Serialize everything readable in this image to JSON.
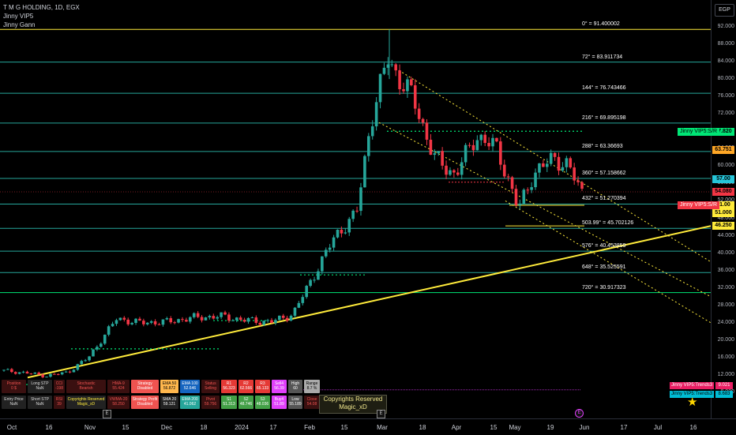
{
  "header": {
    "symbol_line": "T M G HOLDING, 1D, EGX",
    "indicator1": "Jinny VIP5",
    "indicator2": "Jinny Gann"
  },
  "currency_button": "EGP",
  "price_axis": {
    "min": 8,
    "max": 94,
    "ticks": [
      "92.000",
      "88.000",
      "84.000",
      "80.000",
      "76.000",
      "72.000",
      "68.000",
      "64.000",
      "60.000",
      "56.000",
      "52.000",
      "48.000",
      "44.000",
      "40.000",
      "36.000",
      "32.000",
      "28.000",
      "24.000",
      "20.000",
      "16.000",
      "12.000",
      "8.000"
    ]
  },
  "time_axis": {
    "labels": [
      "Oct",
      "16",
      "Nov",
      "15",
      "Dec",
      "18",
      "2024",
      "17",
      "Feb",
      "15",
      "Mar",
      "18",
      "Apr",
      "15",
      "May",
      "19",
      "Jun",
      "17",
      "Jul",
      "16"
    ]
  },
  "gann_levels": [
    {
      "label": "0° = 91.400002",
      "price": 91.4,
      "color": "#ffeb3b"
    },
    {
      "label": "72° = 83.911734",
      "price": 83.911734,
      "color": "#26a69a"
    },
    {
      "label": "144° = 76.743466",
      "price": 76.743466,
      "color": "#26a69a"
    },
    {
      "label": "216° = 69.895198",
      "price": 69.895198,
      "color": "#26a69a"
    },
    {
      "label": "288° = 63.36693",
      "price": 63.36693,
      "color": "#26a69a"
    },
    {
      "label": "360° = 57.158662",
      "price": 57.158662,
      "color": "#26a69a"
    },
    {
      "label": "432° = 51.270394",
      "price": 51.270394,
      "color": "#26a69a"
    },
    {
      "label": "503.99° = 45.702126",
      "price": 45.702126,
      "color": "#26a69a"
    },
    {
      "label": "576° = 40.453859",
      "price": 40.453859,
      "color": "#26a69a"
    },
    {
      "label": "648° = 35.525591",
      "price": 35.525591,
      "color": "#26a69a"
    },
    {
      "label": "720° = 30.917323",
      "price": 30.917323,
      "color": "#00e676"
    }
  ],
  "price_labels": [
    {
      "text": "67.820",
      "price": 67.82,
      "color": "#00e676"
    },
    {
      "text": "63.751",
      "price": 63.751,
      "color": "#ffa726"
    },
    {
      "text": "57.00",
      "price": 57.0,
      "color": "#26c6da"
    },
    {
      "text": "54.080",
      "price": 54.08,
      "color": "#f23645"
    },
    {
      "text": "51.00",
      "price": 51.0,
      "color": "#ffeb3b"
    },
    {
      "text": "51.000",
      "price": 49.1,
      "color": "#ffeb3b"
    },
    {
      "text": "46.250",
      "price": 46.25,
      "color": "#ffeb3b"
    }
  ],
  "chart_tags": [
    {
      "text": "Jinny VIP5:S/R",
      "price": 67.82,
      "bg": "#00e676",
      "fg": "#000"
    },
    {
      "text": "Jinny VIP5:S/R",
      "price": 51.0,
      "bg": "#f23645",
      "fg": "#fff"
    }
  ],
  "table": {
    "row1": [
      {
        "title": "Position",
        "value": "0 $",
        "bg": "#3a1010",
        "fg": "#ef5350"
      },
      {
        "title": "Long STP",
        "value": "NaN",
        "bg": "#222",
        "fg": "#ddd"
      },
      {
        "title": "CCI",
        "value": "-198",
        "bg": "#3a1010",
        "fg": "#ef5350"
      },
      {
        "title": "Stochastic",
        "value": "Bearish",
        "bg": "#3a1010",
        "fg": "#ef5350"
      },
      {
        "title": "HMA-9",
        "value": "55.424",
        "bg": "#3a1010",
        "fg": "#ef5350"
      },
      {
        "title": "Strategy",
        "value": "Disabled",
        "bg": "#ef5350",
        "fg": "#fff"
      },
      {
        "title": "EMA 50",
        "value": "56.872",
        "bg": "#ffb74d",
        "fg": "#000"
      },
      {
        "title": "EMA 100",
        "value": "52.646",
        "bg": "#1565c0",
        "fg": "#fff"
      },
      {
        "title": "Status",
        "value": "Selling",
        "bg": "#3a1010",
        "fg": "#ef5350"
      },
      {
        "title": "R1",
        "value": "56.323",
        "bg": "#e53935",
        "fg": "#fff"
      },
      {
        "title": "R2",
        "value": "62.566",
        "bg": "#e53935",
        "fg": "#fff"
      },
      {
        "title": "R3",
        "value": "65.133",
        "bg": "#e53935",
        "fg": "#fff"
      },
      {
        "title": "Sell4",
        "value": "56.39",
        "bg": "#e040fb",
        "fg": "#fff"
      },
      {
        "title": "High",
        "value": "60",
        "bg": "#555",
        "fg": "#fff"
      },
      {
        "title": "Range",
        "value": "8.7 %",
        "bg": "#aaa",
        "fg": "#000"
      }
    ],
    "row2": [
      {
        "title": "Entry Price",
        "value": "NaN",
        "bg": "#222",
        "fg": "#ddd"
      },
      {
        "title": "Short STP",
        "value": "NaN",
        "bg": "#222",
        "fg": "#ddd"
      },
      {
        "title": "RSI",
        "value": "39",
        "bg": "#3a1010",
        "fg": "#ef5350"
      },
      {
        "title": "Copyrights Reserved",
        "value": "Magic_xD",
        "bg": "#222",
        "fg": "#ffeb3b"
      },
      {
        "title": "VWMA-20",
        "value": "58.250",
        "bg": "#3a1010",
        "fg": "#ef5350"
      },
      {
        "title": "Strategy Profit",
        "value": "Disabled",
        "bg": "#ef5350",
        "fg": "#fff"
      },
      {
        "title": "SMA 20",
        "value": "59.121",
        "bg": "#222",
        "fg": "#fff"
      },
      {
        "title": "EMA 200",
        "value": "41.062",
        "bg": "#26a69a",
        "fg": "#fff"
      },
      {
        "title": "Pivot",
        "value": "59.756",
        "bg": "#3a1010",
        "fg": "#ef5350"
      },
      {
        "title": "S1",
        "value": "51.313",
        "bg": "#43a047",
        "fg": "#fff"
      },
      {
        "title": "S2",
        "value": "48.746",
        "bg": "#43a047",
        "fg": "#fff"
      },
      {
        "title": "S3",
        "value": "48.036",
        "bg": "#43a047",
        "fg": "#fff"
      },
      {
        "title": "Buy4",
        "value": "51.89",
        "bg": "#e040fb",
        "fg": "#fff"
      },
      {
        "title": "Low",
        "value": "55.189",
        "bg": "#555",
        "fg": "#fff"
      },
      {
        "title": "Close",
        "value": "54.08",
        "bg": "#3a1010",
        "fg": "#ef5350"
      }
    ]
  },
  "copyright_box": {
    "line1": "Copyrights Reserved",
    "line2": "Magic_xD"
  },
  "trend_tags": [
    {
      "name": "Jinny VIP5:Trends3",
      "value": "9.021"
    },
    {
      "name": "Jinny VIP5:Trends3",
      "value": "8.683"
    }
  ],
  "colors": {
    "up": "#26a69a",
    "down": "#f23645",
    "trendline": "#ffeb3b",
    "gann_line": "#26a69a"
  }
}
